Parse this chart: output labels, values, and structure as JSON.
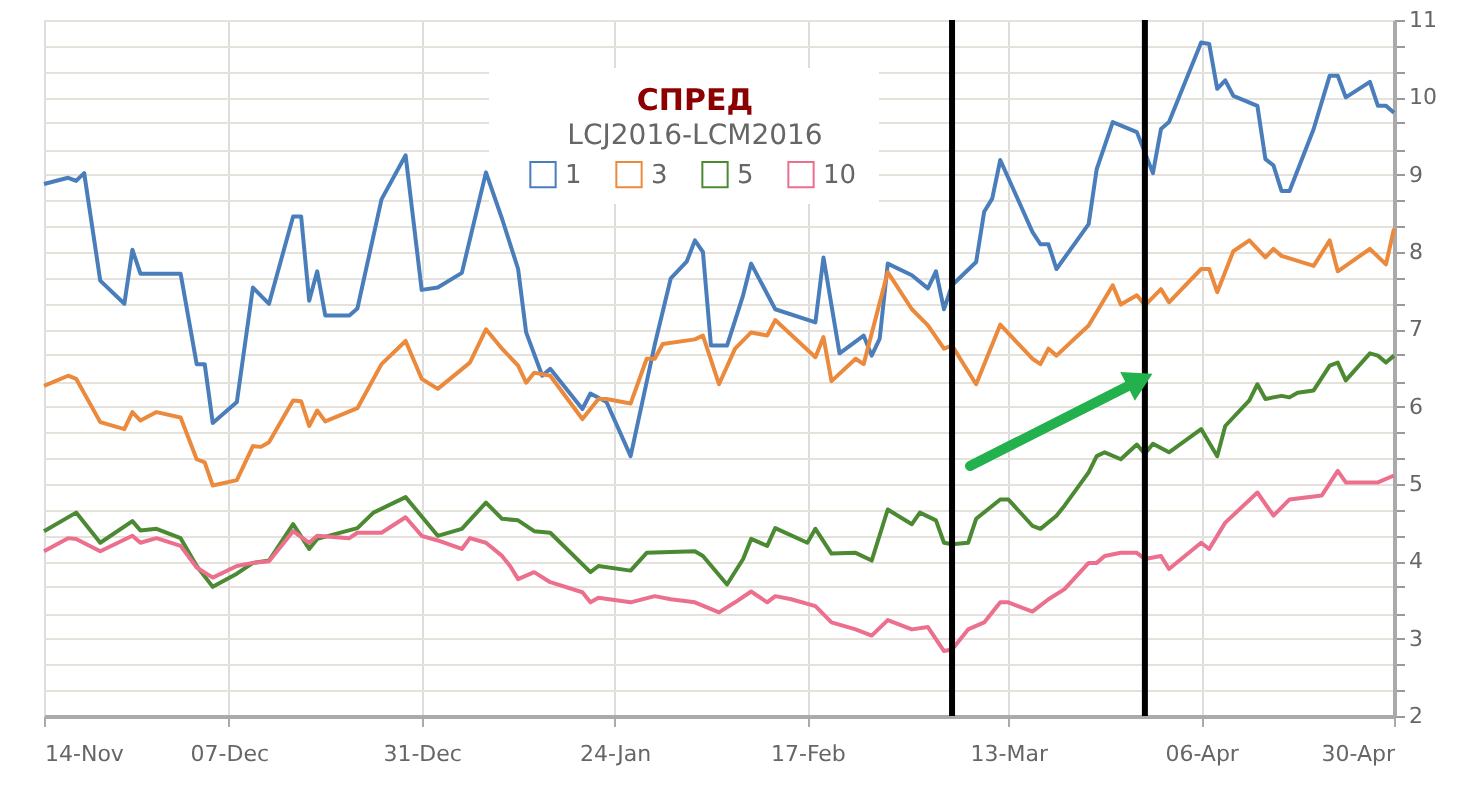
{
  "chart_data": {
    "type": "line",
    "title": "СПРЕД",
    "subtitle": "LCJ2016-LCM2016",
    "xlim": [
      "2015-11-14",
      "2016-04-30"
    ],
    "xticks": [
      {
        "value": "2015-11-14",
        "label": "14-Nov"
      },
      {
        "value": "2015-12-07",
        "label": "07-Dec"
      },
      {
        "value": "2015-12-31",
        "label": "31-Dec"
      },
      {
        "value": "2016-01-24",
        "label": "24-Jan"
      },
      {
        "value": "2016-02-17",
        "label": "17-Feb"
      },
      {
        "value": "2016-03-13",
        "label": "13-Mar"
      },
      {
        "value": "2016-04-06",
        "label": "06-Apr"
      },
      {
        "value": "2016-04-30",
        "label": "30-Apr"
      }
    ],
    "ylim": [
      2,
      11
    ],
    "yticks": [
      2,
      {
        "value": 2.33,
        "label": null
      },
      {
        "value": 2.67,
        "label": null
      },
      3,
      {
        "value": 3.33,
        "label": null
      },
      {
        "value": 3.67,
        "label": null
      },
      4,
      {
        "value": 4.33,
        "label": null
      },
      {
        "value": 4.67,
        "label": null
      },
      5,
      {
        "value": 5.33,
        "label": null
      },
      {
        "value": 5.67,
        "label": null
      },
      6,
      {
        "value": 6.33,
        "label": null
      },
      {
        "value": 6.67,
        "label": null
      },
      7,
      {
        "value": 7.33,
        "label": null
      },
      {
        "value": 7.67,
        "label": null
      },
      8,
      {
        "value": 8.33,
        "label": null
      },
      {
        "value": 8.67,
        "label": null
      },
      9,
      {
        "value": 9.33,
        "label": null
      },
      {
        "value": 9.67,
        "label": null
      },
      10,
      {
        "value": 10.33,
        "label": null
      },
      {
        "value": 10.67,
        "label": null
      },
      11
    ],
    "grid": true,
    "legend": "top",
    "marker": "none",
    "line_style": "solid",
    "ref_lines": [
      {
        "axis": "x",
        "value": "2016-03-06",
        "color": "#000000"
      },
      {
        "axis": "x",
        "value": "2016-03-30",
        "color": "#000000"
      }
    ],
    "series": [
      {
        "name": "1",
        "color": "#4a7ebb",
        "x": [
          "2015-11-14",
          "2015-11-17",
          "2015-11-18",
          "2015-11-19",
          "2015-11-21",
          "2015-11-24",
          "2015-11-25",
          "2015-11-26",
          "2015-12-01",
          "2015-12-03",
          "2015-12-04",
          "2015-12-05",
          "2015-12-08",
          "2015-12-10",
          "2015-12-12",
          "2015-12-15",
          "2015-12-16",
          "2015-12-17",
          "2015-12-18",
          "2015-12-19",
          "2015-12-22",
          "2015-12-23",
          "2015-12-26",
          "2015-12-29",
          "2015-12-31",
          "2016-01-02",
          "2016-01-05",
          "2016-01-08",
          "2016-01-10",
          "2016-01-12",
          "2016-01-13",
          "2016-01-15",
          "2016-01-16",
          "2016-01-20",
          "2016-01-21",
          "2016-01-23",
          "2016-01-26",
          "2016-01-29",
          "2016-01-31",
          "2016-02-02",
          "2016-02-03",
          "2016-02-04",
          "2016-02-05",
          "2016-02-07",
          "2016-02-09",
          "2016-02-10",
          "2016-02-13",
          "2016-02-18",
          "2016-02-19",
          "2016-02-21",
          "2016-02-24",
          "2016-02-25",
          "2016-02-26",
          "2016-02-27",
          "2016-03-01",
          "2016-03-03",
          "2016-03-04",
          "2016-03-05",
          "2016-03-06",
          "2016-03-09",
          "2016-03-10",
          "2016-03-11",
          "2016-03-12",
          "2016-03-16",
          "2016-03-17",
          "2016-03-18",
          "2016-03-19",
          "2016-03-23",
          "2016-03-24",
          "2016-03-26",
          "2016-03-29",
          "2016-03-31",
          "2016-04-01",
          "2016-04-02",
          "2016-04-06",
          "2016-04-07",
          "2016-04-08",
          "2016-04-09",
          "2016-04-10",
          "2016-04-13",
          "2016-04-14",
          "2016-04-15",
          "2016-04-16",
          "2016-04-17",
          "2016-04-20",
          "2016-04-22",
          "2016-04-23",
          "2016-04-24",
          "2016-04-27",
          "2016-04-28",
          "2016-04-29",
          "2016-04-30"
        ],
        "values": [
          8.88,
          8.96,
          8.92,
          9.02,
          7.63,
          7.33,
          8.03,
          7.72,
          7.72,
          6.55,
          6.55,
          5.79,
          6.06,
          7.54,
          7.33,
          8.46,
          8.46,
          7.37,
          7.75,
          7.18,
          7.18,
          7.27,
          8.68,
          9.25,
          7.51,
          7.54,
          7.73,
          9.03,
          8.43,
          7.78,
          6.96,
          6.4,
          6.49,
          5.97,
          6.17,
          6.06,
          5.36,
          6.8,
          7.66,
          7.88,
          8.15,
          8.0,
          6.79,
          6.79,
          7.44,
          7.85,
          7.26,
          7.09,
          7.93,
          6.69,
          6.92,
          6.66,
          6.88,
          7.85,
          7.7,
          7.53,
          7.75,
          7.26,
          7.57,
          7.87,
          8.52,
          8.69,
          9.19,
          8.26,
          8.1,
          8.1,
          7.78,
          8.36,
          9.07,
          9.68,
          9.55,
          9.02,
          9.59,
          9.68,
          10.71,
          10.69,
          10.11,
          10.22,
          10.02,
          9.89,
          9.2,
          9.12,
          8.79,
          8.79,
          9.59,
          10.28,
          10.28,
          10.0,
          10.2,
          9.89,
          9.89,
          9.8
        ]
      },
      {
        "name": "3",
        "color": "#eb8a3c",
        "x": [
          "2015-11-14",
          "2015-11-17",
          "2015-11-18",
          "2015-11-21",
          "2015-11-24",
          "2015-11-25",
          "2015-11-26",
          "2015-11-28",
          "2015-12-01",
          "2015-12-03",
          "2015-12-04",
          "2015-12-05",
          "2015-12-08",
          "2015-12-10",
          "2015-12-11",
          "2015-12-12",
          "2015-12-15",
          "2015-12-16",
          "2015-12-17",
          "2015-12-18",
          "2015-12-19",
          "2015-12-23",
          "2015-12-26",
          "2015-12-29",
          "2015-12-31",
          "2016-01-02",
          "2016-01-06",
          "2016-01-08",
          "2016-01-10",
          "2016-01-12",
          "2016-01-13",
          "2016-01-14",
          "2016-01-16",
          "2016-01-20",
          "2016-01-22",
          "2016-01-23",
          "2016-01-26",
          "2016-01-28",
          "2016-01-29",
          "2016-01-30",
          "2016-02-03",
          "2016-02-04",
          "2016-02-06",
          "2016-02-08",
          "2016-02-10",
          "2016-02-12",
          "2016-02-13",
          "2016-02-18",
          "2016-02-19",
          "2016-02-20",
          "2016-02-23",
          "2016-02-24",
          "2016-02-27",
          "2016-03-01",
          "2016-03-03",
          "2016-03-05",
          "2016-03-06",
          "2016-03-09",
          "2016-03-12",
          "2016-03-16",
          "2016-03-17",
          "2016-03-18",
          "2016-03-19",
          "2016-03-23",
          "2016-03-26",
          "2016-03-27",
          "2016-03-29",
          "2016-03-30",
          "2016-04-01",
          "2016-04-02",
          "2016-04-06",
          "2016-04-07",
          "2016-04-08",
          "2016-04-10",
          "2016-04-12",
          "2016-04-14",
          "2016-04-15",
          "2016-04-16",
          "2016-04-20",
          "2016-04-22",
          "2016-04-23",
          "2016-04-27",
          "2016-04-29",
          "2016-04-30"
        ],
        "values": [
          6.27,
          6.4,
          6.36,
          5.8,
          5.71,
          5.93,
          5.82,
          5.93,
          5.86,
          5.32,
          5.28,
          4.98,
          5.05,
          5.49,
          5.48,
          5.54,
          6.08,
          6.07,
          5.75,
          5.95,
          5.81,
          5.98,
          6.55,
          6.85,
          6.36,
          6.23,
          6.57,
          7.0,
          6.75,
          6.53,
          6.31,
          6.44,
          6.4,
          5.84,
          6.1,
          6.1,
          6.04,
          6.62,
          6.62,
          6.81,
          6.87,
          6.92,
          6.29,
          6.75,
          6.96,
          6.92,
          7.12,
          6.64,
          6.9,
          6.33,
          6.62,
          6.55,
          7.74,
          7.26,
          7.05,
          6.75,
          6.79,
          6.29,
          7.06,
          6.62,
          6.55,
          6.75,
          6.66,
          7.05,
          7.57,
          7.32,
          7.44,
          7.31,
          7.52,
          7.35,
          7.78,
          7.78,
          7.48,
          8.01,
          8.15,
          7.93,
          8.04,
          7.95,
          7.82,
          8.15,
          7.75,
          8.04,
          7.84,
          8.3
        ]
      },
      {
        "name": "5",
        "color": "#4b8a32",
        "x": [
          "2015-11-14",
          "2015-11-18",
          "2015-11-21",
          "2015-11-25",
          "2015-11-26",
          "2015-11-28",
          "2015-12-01",
          "2015-12-03",
          "2015-12-05",
          "2015-12-08",
          "2015-12-10",
          "2015-12-12",
          "2015-12-15",
          "2015-12-17",
          "2015-12-18",
          "2015-12-23",
          "2015-12-25",
          "2015-12-29",
          "2016-01-02",
          "2016-01-05",
          "2016-01-08",
          "2016-01-10",
          "2016-01-12",
          "2016-01-14",
          "2016-01-16",
          "2016-01-21",
          "2016-01-22",
          "2016-01-26",
          "2016-01-28",
          "2016-02-03",
          "2016-02-04",
          "2016-02-07",
          "2016-02-09",
          "2016-02-10",
          "2016-02-12",
          "2016-02-13",
          "2016-02-17",
          "2016-02-18",
          "2016-02-20",
          "2016-02-23",
          "2016-02-25",
          "2016-02-27",
          "2016-03-01",
          "2016-03-02",
          "2016-03-04",
          "2016-03-05",
          "2016-03-06",
          "2016-03-08",
          "2016-03-09",
          "2016-03-12",
          "2016-03-13",
          "2016-03-16",
          "2016-03-17",
          "2016-03-19",
          "2016-03-20",
          "2016-03-23",
          "2016-03-24",
          "2016-03-25",
          "2016-03-27",
          "2016-03-29",
          "2016-03-30",
          "2016-03-31",
          "2016-04-02",
          "2016-04-06",
          "2016-04-08",
          "2016-04-09",
          "2016-04-12",
          "2016-04-13",
          "2016-04-14",
          "2016-04-16",
          "2016-04-17",
          "2016-04-18",
          "2016-04-20",
          "2016-04-22",
          "2016-04-23",
          "2016-04-24",
          "2016-04-27",
          "2016-04-28",
          "2016-04-29",
          "2016-04-30"
        ],
        "values": [
          4.39,
          4.63,
          4.24,
          4.52,
          4.4,
          4.42,
          4.3,
          3.94,
          3.67,
          3.84,
          3.98,
          4.01,
          4.48,
          4.16,
          4.29,
          4.43,
          4.63,
          4.83,
          4.33,
          4.42,
          4.76,
          4.55,
          4.53,
          4.39,
          4.37,
          3.86,
          3.94,
          3.88,
          4.11,
          4.13,
          4.07,
          3.7,
          4.03,
          4.29,
          4.2,
          4.43,
          4.24,
          4.42,
          4.1,
          4.11,
          4.01,
          4.67,
          4.48,
          4.63,
          4.53,
          4.24,
          4.22,
          4.24,
          4.55,
          4.8,
          4.8,
          4.46,
          4.42,
          4.59,
          4.72,
          5.15,
          5.36,
          5.41,
          5.32,
          5.51,
          5.39,
          5.52,
          5.41,
          5.71,
          5.36,
          5.75,
          6.08,
          6.29,
          6.1,
          6.14,
          6.12,
          6.18,
          6.21,
          6.53,
          6.57,
          6.34,
          6.69,
          6.66,
          6.57,
          6.66
        ]
      },
      {
        "name": "10",
        "color": "#ec6f8d",
        "x": [
          "2015-11-14",
          "2015-11-17",
          "2015-11-18",
          "2015-11-21",
          "2015-11-25",
          "2015-11-26",
          "2015-11-28",
          "2015-12-01",
          "2015-12-03",
          "2015-12-05",
          "2015-12-08",
          "2015-12-10",
          "2015-12-12",
          "2015-12-15",
          "2015-12-17",
          "2015-12-18",
          "2015-12-22",
          "2015-12-23",
          "2015-12-26",
          "2015-12-29",
          "2015-12-31",
          "2016-01-02",
          "2016-01-05",
          "2016-01-06",
          "2016-01-08",
          "2016-01-10",
          "2016-01-11",
          "2016-01-12",
          "2016-01-14",
          "2016-01-16",
          "2016-01-20",
          "2016-01-21",
          "2016-01-22",
          "2016-01-26",
          "2016-01-29",
          "2016-01-31",
          "2016-02-03",
          "2016-02-06",
          "2016-02-08",
          "2016-02-10",
          "2016-02-12",
          "2016-02-13",
          "2016-02-15",
          "2016-02-18",
          "2016-02-20",
          "2016-02-23",
          "2016-02-25",
          "2016-02-27",
          "2016-03-01",
          "2016-03-03",
          "2016-03-05",
          "2016-03-06",
          "2016-03-08",
          "2016-03-10",
          "2016-03-12",
          "2016-03-13",
          "2016-03-16",
          "2016-03-18",
          "2016-03-20",
          "2016-03-23",
          "2016-03-24",
          "2016-03-25",
          "2016-03-27",
          "2016-03-29",
          "2016-03-30",
          "2016-04-01",
          "2016-04-02",
          "2016-04-06",
          "2016-04-07",
          "2016-04-09",
          "2016-04-13",
          "2016-04-15",
          "2016-04-17",
          "2016-04-21",
          "2016-04-23",
          "2016-04-24",
          "2016-04-28",
          "2016-04-30"
        ],
        "values": [
          4.13,
          4.3,
          4.29,
          4.13,
          4.33,
          4.24,
          4.3,
          4.2,
          3.92,
          3.79,
          3.94,
          3.98,
          4.0,
          4.39,
          4.24,
          4.33,
          4.3,
          4.37,
          4.37,
          4.57,
          4.33,
          4.27,
          4.16,
          4.3,
          4.24,
          4.07,
          3.94,
          3.77,
          3.86,
          3.73,
          3.6,
          3.47,
          3.53,
          3.47,
          3.55,
          3.51,
          3.47,
          3.34,
          3.47,
          3.61,
          3.47,
          3.55,
          3.51,
          3.42,
          3.21,
          3.12,
          3.04,
          3.24,
          3.12,
          3.15,
          2.84,
          2.86,
          3.12,
          3.21,
          3.47,
          3.47,
          3.35,
          3.51,
          3.64,
          3.98,
          3.98,
          4.07,
          4.11,
          4.11,
          4.03,
          4.07,
          3.9,
          4.24,
          4.16,
          4.5,
          4.89,
          4.59,
          4.8,
          4.85,
          5.17,
          5.02,
          5.02,
          5.11
        ]
      }
    ]
  }
}
